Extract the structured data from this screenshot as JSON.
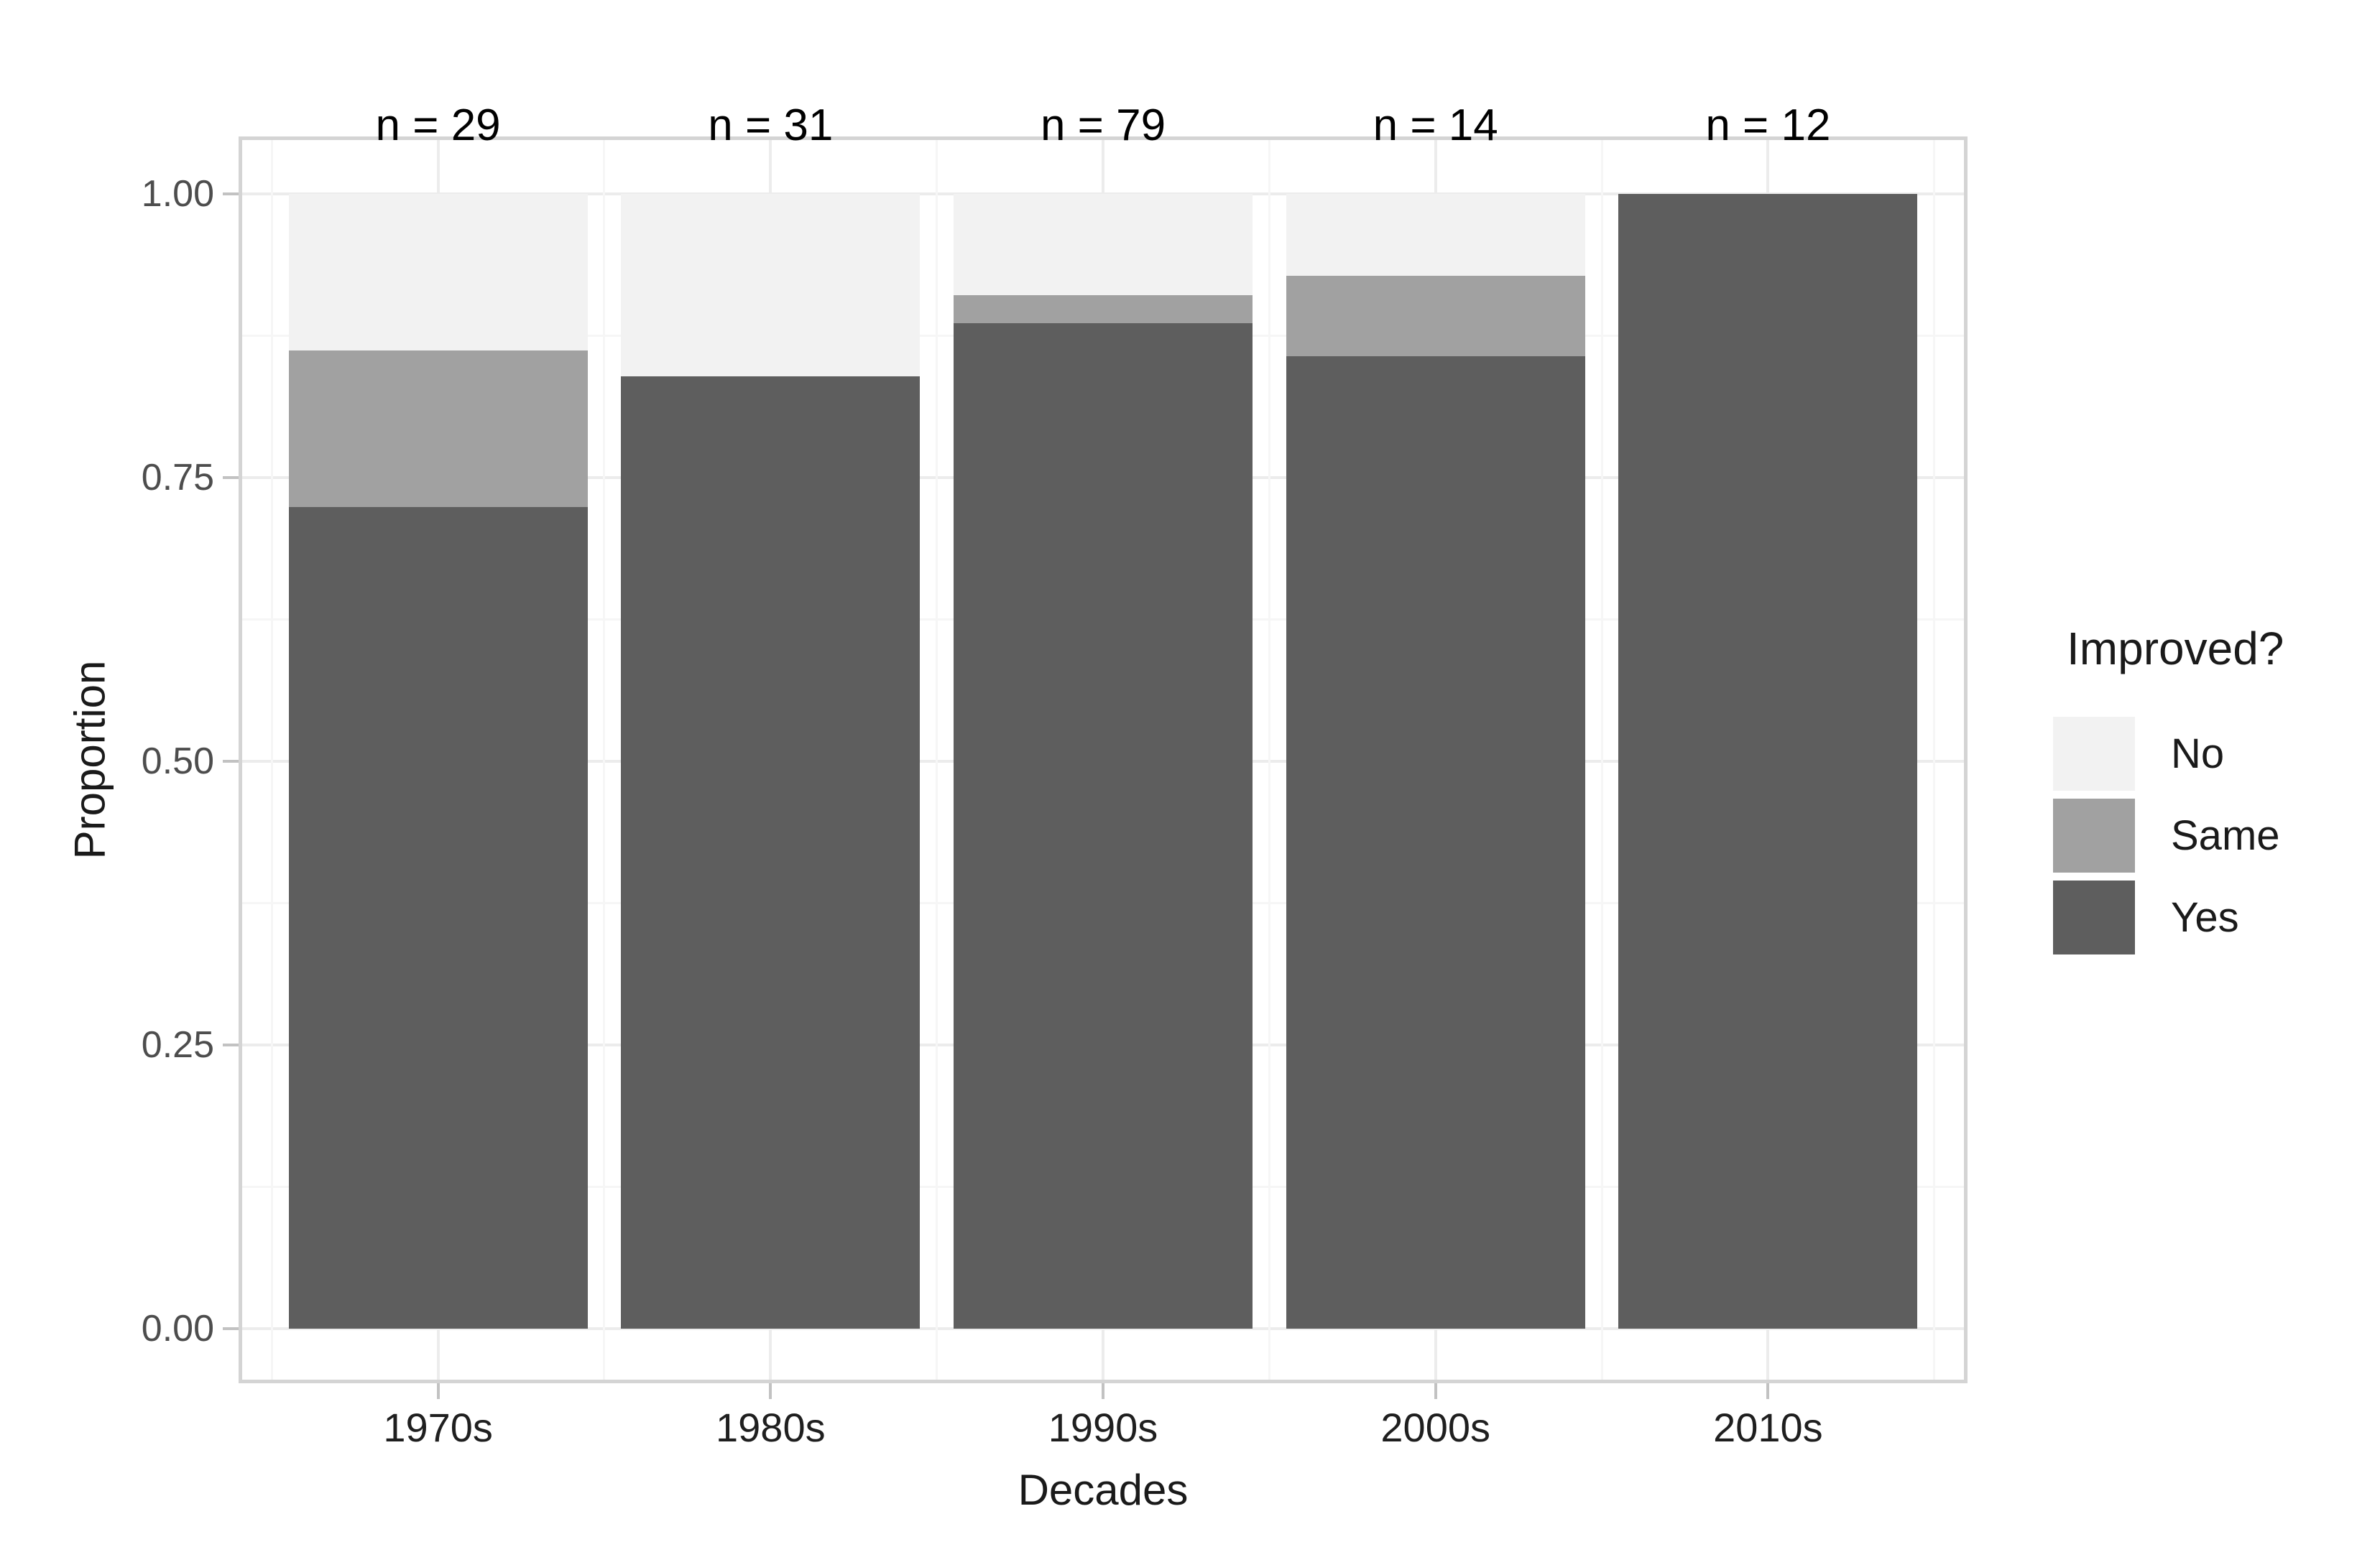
{
  "chart_data": {
    "type": "bar",
    "stacked": true,
    "title": "",
    "xlabel": "Decades",
    "ylabel": "Proportion",
    "categories": [
      "1970s",
      "1980s",
      "1990s",
      "2000s",
      "2010s"
    ],
    "bar_top_labels": [
      "n = 29",
      "n = 31",
      "n = 79",
      "n = 14",
      "n = 12"
    ],
    "sample_sizes": [
      29,
      31,
      79,
      14,
      12
    ],
    "series": [
      {
        "name": "Yes",
        "color": "#5e5e5e",
        "values": [
          0.724,
          0.839,
          0.886,
          0.857,
          1.0
        ]
      },
      {
        "name": "Same",
        "color": "#a1a1a1",
        "values": [
          0.138,
          0.0,
          0.025,
          0.071,
          0.0
        ]
      },
      {
        "name": "No",
        "color": "#f2f2f2",
        "values": [
          0.138,
          0.161,
          0.089,
          0.072,
          0.0
        ]
      }
    ],
    "stack_order_bottom_to_top": [
      "Yes",
      "Same",
      "No"
    ],
    "y_axis": {
      "ticks": [
        0,
        0.25,
        0.5,
        0.75,
        1
      ],
      "tick_labels": [
        "0.00",
        "0.25",
        "0.50",
        "0.75",
        "1.00"
      ],
      "minor_ticks": [
        0.125,
        0.375,
        0.625,
        0.875
      ],
      "limits": [
        0,
        1
      ]
    },
    "legend": {
      "title": "Improved?",
      "position": "right",
      "entries": [
        {
          "label": "No",
          "color": "#f2f2f2"
        },
        {
          "label": "Same",
          "color": "#a1a1a1"
        },
        {
          "label": "Yes",
          "color": "#5e5e5e"
        }
      ]
    },
    "grid": true
  },
  "colors": {
    "background": "#ffffff",
    "panel_border": "#d4d4d4",
    "grid_major": "#ececec",
    "grid_minor": "#f6f6f6",
    "tick_mark": "#c2c2c2",
    "y_tick_text": "#4d4d4d",
    "x_tick_text": "#1f1f1f",
    "bar_label_text": "#000000",
    "axis_title_text": "#1a1a1a"
  }
}
